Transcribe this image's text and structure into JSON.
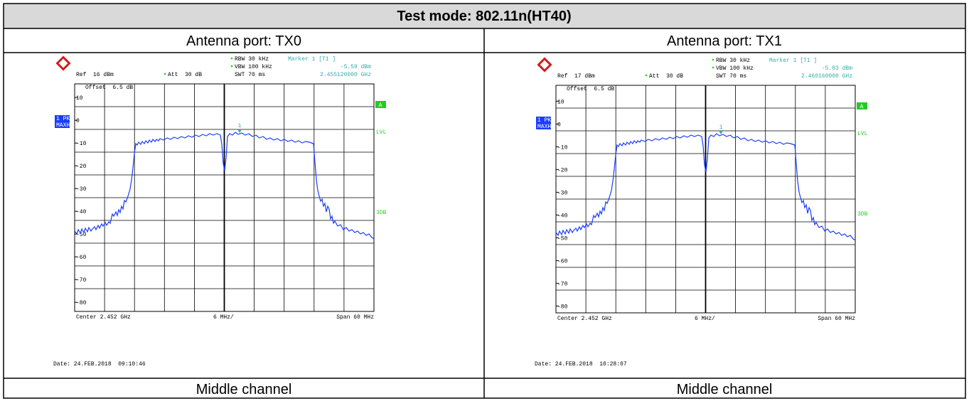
{
  "title": "Test mode: 802.11n(HT40)",
  "panels": [
    {
      "heading": "Antenna port: TX0",
      "footer": "Middle channel",
      "plot": {
        "rbw": "RBW 30 kHz",
        "vbw": "VBW 100 kHz",
        "swt": "SWT 70 ms",
        "marker": "Marker 1 [T1 ]",
        "marker_level": "-5.59 dBm",
        "marker_freq": "2.455120000 GHz",
        "ref": "Ref  16 dBm",
        "att": "Att  30 dB",
        "offset": "Offset  6.5 dB",
        "ylim": [
          -84,
          16
        ],
        "yticks": [
          10,
          0,
          -10,
          -20,
          -30,
          -40,
          -50,
          -60,
          -70,
          -80
        ],
        "trace": "1 PK",
        "trace_mode": "MAXH",
        "marker_label": "1",
        "side_labels": [
          "A",
          "LVL",
          "3DB"
        ],
        "center": "Center 2.452 GHz",
        "div": "6 MHz/",
        "span": "Span 60 MHz",
        "date": "Date: 24.FEB.2018  09:10:46"
      }
    },
    {
      "heading": "Antenna port: TX1",
      "footer": "Middle channel",
      "plot": {
        "rbw": "RBW 30 kHz",
        "vbw": "VBW 100 kHz",
        "swt": "SWT 70 ms",
        "marker": "Marker 1 [T1 ]",
        "marker_level": "-5.83 dBm",
        "marker_freq": "2.460160000 GHz",
        "ref": "Ref  17 dBm",
        "att": "Att  30 dB",
        "offset": "Offset  6.5 dB",
        "ylim": [
          -83,
          17
        ],
        "yticks": [
          10,
          0,
          -10,
          -20,
          -30,
          -40,
          -50,
          -60,
          -70,
          -80
        ],
        "trace": "1 PK",
        "trace_mode": "MAXH",
        "marker_label": "1",
        "side_labels": [
          "A",
          "LVL",
          "3DB"
        ],
        "center": "Center 2.452 GHz",
        "div": "6 MHz/",
        "span": "Span 60 MHz",
        "date": "Date: 24.FEB.2018  10:28:07"
      }
    }
  ]
}
